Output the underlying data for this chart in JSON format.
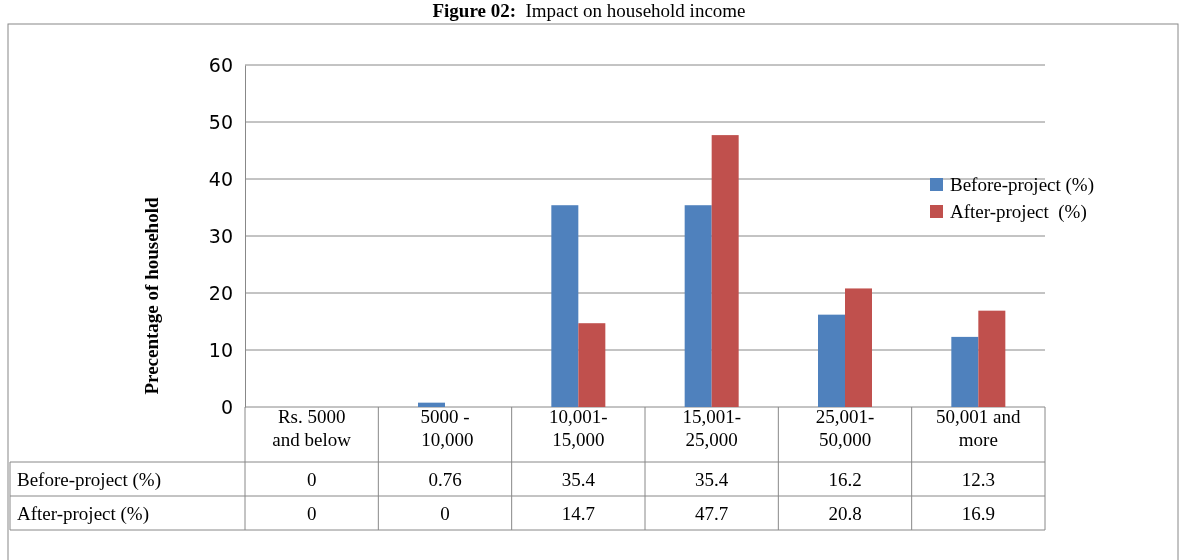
{
  "chart_data": {
    "type": "bar",
    "title": "Figure 02:  Impact on household income",
    "ylabel": "Precentage of household",
    "categories": [
      "Rs. 5000 and below",
      "5000 - 10,000",
      "10,001-15,000",
      "15,001-25,000",
      "25,001-50,000",
      "50,001 and more"
    ],
    "series": [
      {
        "name": "Before-project (%)",
        "color": "#4f81bd",
        "values": [
          0,
          0.76,
          35.4,
          35.4,
          16.2,
          12.3
        ]
      },
      {
        "name": "After-project  (%)",
        "color": "#c0504d",
        "values": [
          0,
          0,
          14.7,
          47.7,
          20.8,
          16.9
        ]
      }
    ],
    "ylim": [
      0,
      60
    ],
    "yticks": [
      0,
      10,
      20,
      30,
      40,
      50,
      60
    ],
    "grid": "y",
    "legend": "right",
    "data_labels": true
  }
}
